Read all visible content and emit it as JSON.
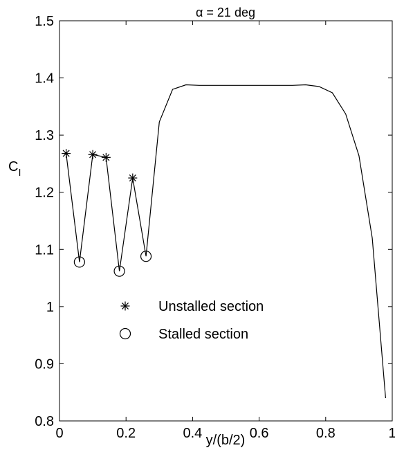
{
  "chart_data": {
    "type": "line",
    "title": "α = 21 deg",
    "xlabel": "y/(b/2)",
    "ylabel_main": "C",
    "ylabel_sub": "l",
    "xlim": [
      0,
      1
    ],
    "ylim": [
      0.8,
      1.5
    ],
    "x_ticks": [
      0,
      0.2,
      0.4,
      0.6,
      0.8,
      1
    ],
    "x_tick_labels": [
      "0",
      "0.2",
      "0.4",
      "0.6",
      "0.8",
      "1"
    ],
    "y_ticks": [
      0.8,
      0.9,
      1.0,
      1.1,
      1.2,
      1.3,
      1.4,
      1.5
    ],
    "y_tick_labels": [
      "0.8",
      "0.9",
      "1",
      "1.1",
      "1.2",
      "1.3",
      "1.4",
      "1.5"
    ],
    "grid": false,
    "legend_position": "lower-left-inside",
    "legend": [
      {
        "label": "Unstalled section",
        "marker": "asterisk"
      },
      {
        "label": "Stalled section",
        "marker": "circle"
      }
    ],
    "series": [
      {
        "style": "line",
        "color": "#000000",
        "x": [
          0.02,
          0.06,
          0.1,
          0.14,
          0.18,
          0.22,
          0.26,
          0.3,
          0.34,
          0.38,
          0.42,
          0.46,
          0.5,
          0.54,
          0.58,
          0.62,
          0.66,
          0.7,
          0.74,
          0.78,
          0.82,
          0.86,
          0.9,
          0.94,
          0.98
        ],
        "y": [
          1.268,
          1.078,
          1.266,
          1.261,
          1.062,
          1.225,
          1.088,
          1.323,
          1.38,
          1.388,
          1.387,
          1.387,
          1.387,
          1.387,
          1.387,
          1.387,
          1.387,
          1.387,
          1.388,
          1.385,
          1.374,
          1.337,
          1.264,
          1.12,
          0.84
        ]
      }
    ],
    "unstalled_points": {
      "x": [
        0.02,
        0.1,
        0.14,
        0.22
      ],
      "y": [
        1.268,
        1.266,
        1.261,
        1.225
      ]
    },
    "stalled_points": {
      "x": [
        0.06,
        0.18,
        0.26
      ],
      "y": [
        1.078,
        1.062,
        1.088
      ]
    }
  }
}
